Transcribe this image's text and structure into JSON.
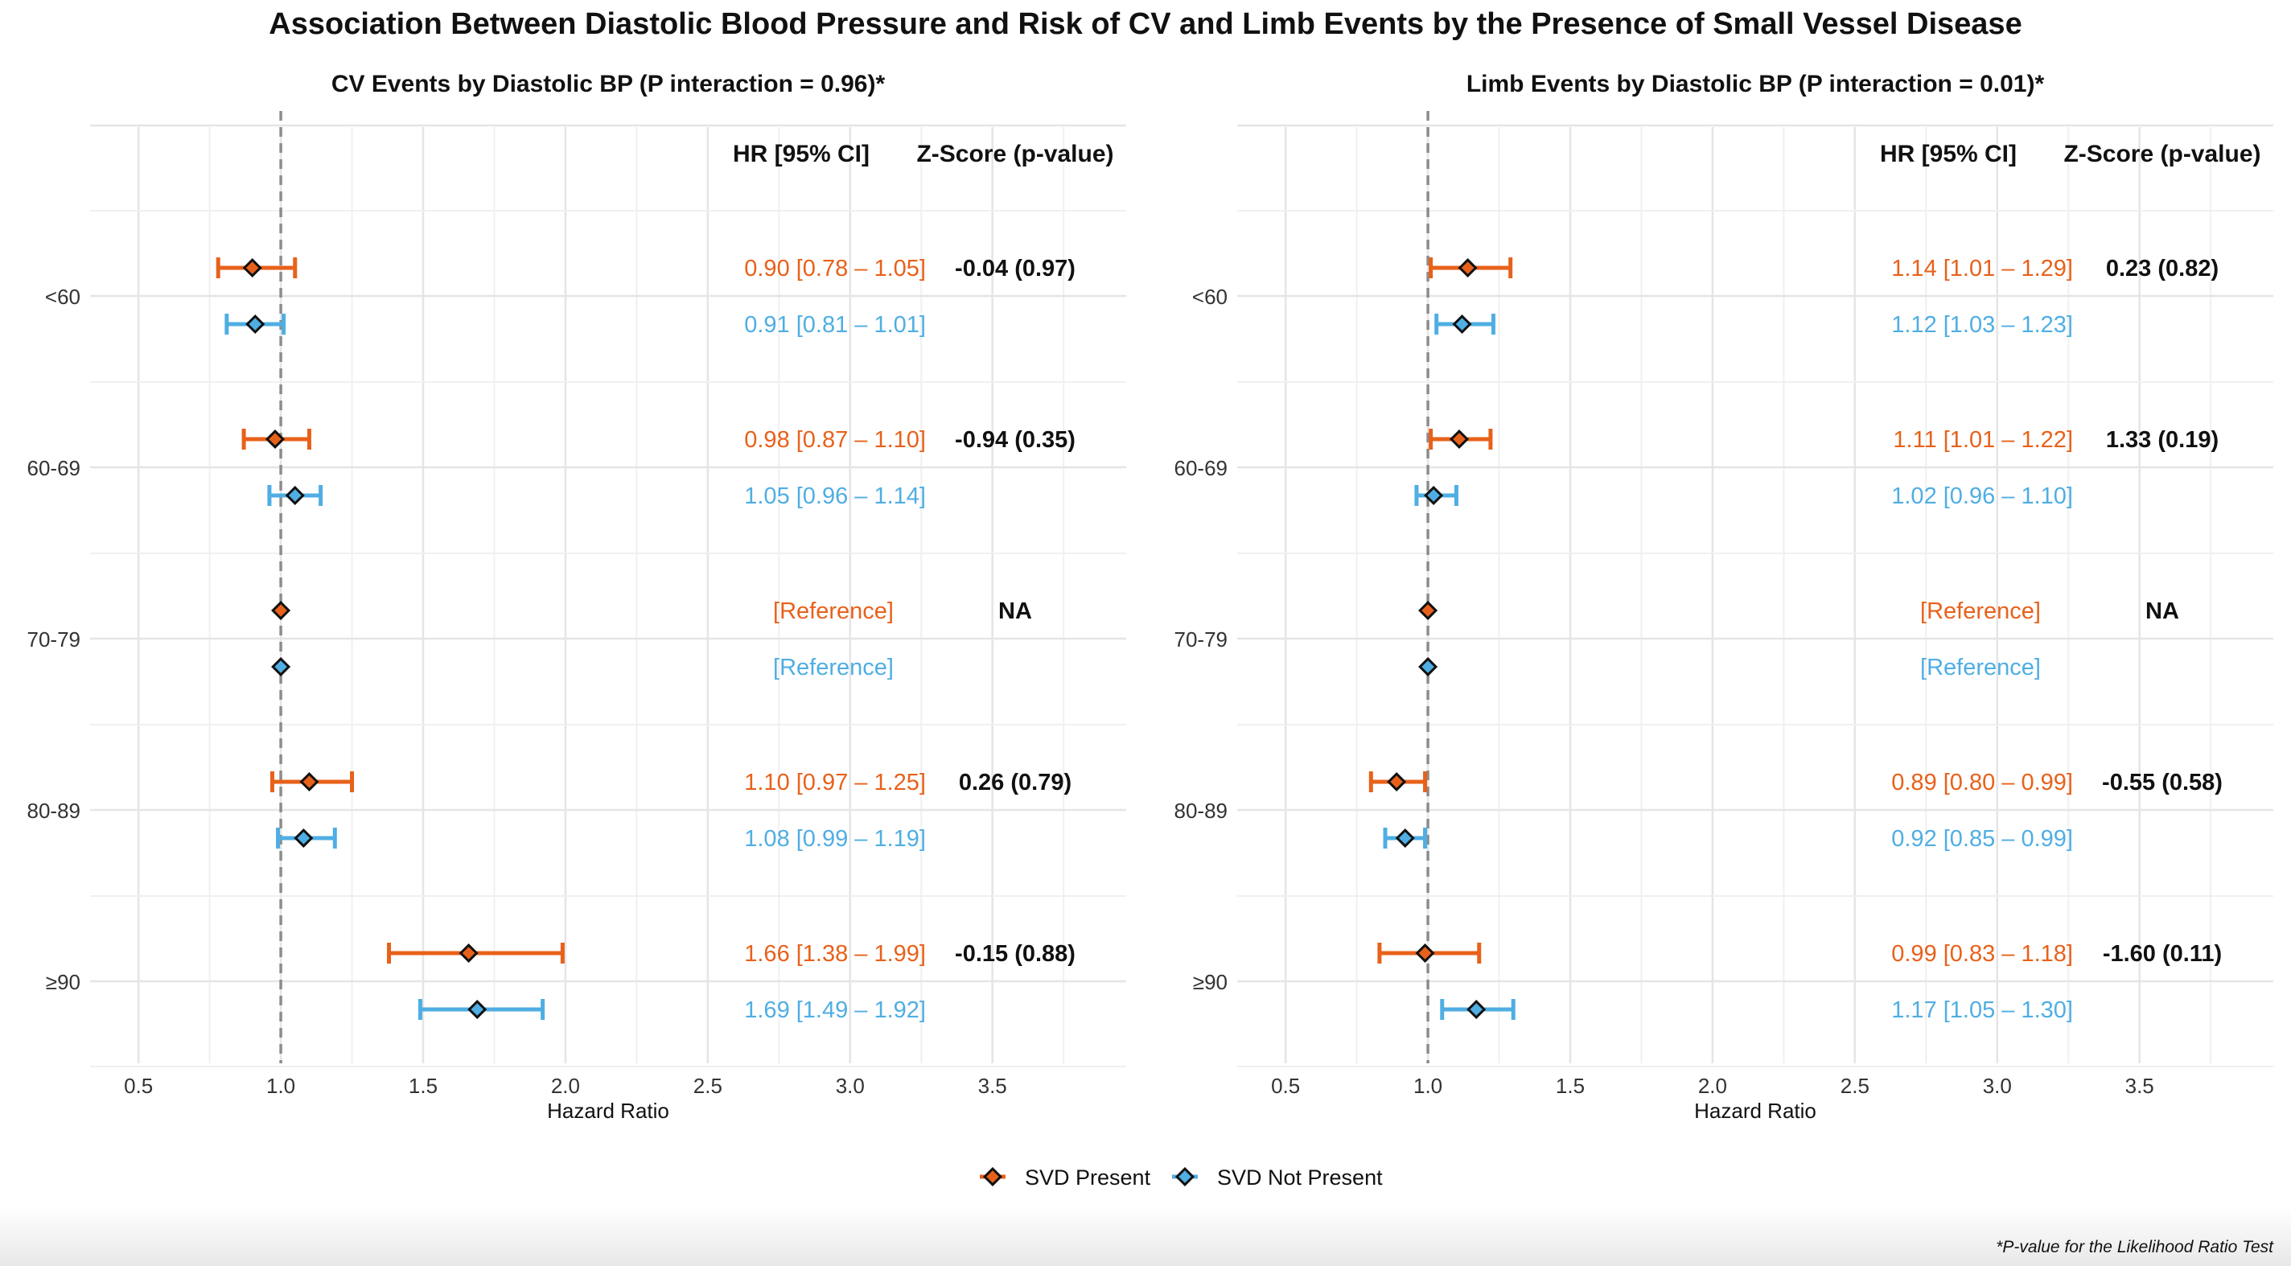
{
  "title": "Association Between Diastolic Blood Pressure and Risk of CV and Limb Events by the Presence of Small Vessel Disease",
  "footnote": "*P-value for the Likelihood Ratio Test",
  "colors": {
    "present": "#E8611A",
    "not_present": "#4FAEE3",
    "marker_fill_present": "#E8611A",
    "marker_fill_not_present": "#4FAEE3",
    "marker_edge": "#111111",
    "grid": "#E5E5E5",
    "reference_line": "#8C8C8C"
  },
  "legend": {
    "position": "bottom-center",
    "items": [
      {
        "label": "SVD Present",
        "series": "present"
      },
      {
        "label": "SVD Not Present",
        "series": "not_present"
      }
    ]
  },
  "chart_data": [
    {
      "type": "forest",
      "title": "CV Events by Diastolic BP (P interaction = 0.96)*",
      "xlabel": "Hazard Ratio",
      "xlim": [
        0.33,
        3.97
      ],
      "xticks": [
        0.5,
        1.0,
        1.5,
        2.0,
        2.5,
        3.0,
        3.5
      ],
      "xtick_labels": [
        "0.5",
        "1.0",
        "1.5",
        "2.0",
        "2.5",
        "3.0",
        "3.5"
      ],
      "reference_value": 1.0,
      "categories": [
        "<60",
        "60-69",
        "70-79",
        "80-89",
        "≥90"
      ],
      "col_hr_header": "HR [95% CI]",
      "col_z_header": "Z-Score (p-value)",
      "rows": [
        {
          "category": "<60",
          "present": {
            "hr": 0.9,
            "lo": 0.78,
            "hi": 1.05,
            "label": "0.90 [0.78 – 1.05]"
          },
          "not_present": {
            "hr": 0.91,
            "lo": 0.81,
            "hi": 1.01,
            "label": "0.91 [0.81 – 1.01]"
          },
          "z": "-0.04 (0.97)"
        },
        {
          "category": "60-69",
          "present": {
            "hr": 0.98,
            "lo": 0.87,
            "hi": 1.1,
            "label": "0.98 [0.87 – 1.10]"
          },
          "not_present": {
            "hr": 1.05,
            "lo": 0.96,
            "hi": 1.14,
            "label": "1.05 [0.96 – 1.14]"
          },
          "z": "-0.94 (0.35)"
        },
        {
          "category": "70-79",
          "present": {
            "hr": 1.0,
            "lo": 1.0,
            "hi": 1.0,
            "label": "[Reference]"
          },
          "not_present": {
            "hr": 1.0,
            "lo": 1.0,
            "hi": 1.0,
            "label": "[Reference]"
          },
          "z": "NA"
        },
        {
          "category": "80-89",
          "present": {
            "hr": 1.1,
            "lo": 0.97,
            "hi": 1.25,
            "label": "1.10 [0.97 – 1.25]"
          },
          "not_present": {
            "hr": 1.08,
            "lo": 0.99,
            "hi": 1.19,
            "label": "1.08 [0.99 – 1.19]"
          },
          "z": "0.26 (0.79)"
        },
        {
          "category": "≥90",
          "present": {
            "hr": 1.66,
            "lo": 1.38,
            "hi": 1.99,
            "label": "1.66 [1.38 – 1.99]"
          },
          "not_present": {
            "hr": 1.69,
            "lo": 1.49,
            "hi": 1.92,
            "label": "1.69 [1.49 – 1.92]"
          },
          "z": "-0.15 (0.88)"
        }
      ]
    },
    {
      "type": "forest",
      "title": "Limb Events by Diastolic BP (P interaction = 0.01)*",
      "xlabel": "Hazard Ratio",
      "xlim": [
        0.33,
        3.97
      ],
      "xticks": [
        0.5,
        1.0,
        1.5,
        2.0,
        2.5,
        3.0,
        3.5
      ],
      "xtick_labels": [
        "0.5",
        "1.0",
        "1.5",
        "2.0",
        "2.5",
        "3.0",
        "3.5"
      ],
      "reference_value": 1.0,
      "categories": [
        "<60",
        "60-69",
        "70-79",
        "80-89",
        "≥90"
      ],
      "col_hr_header": "HR [95% CI]",
      "col_z_header": "Z-Score (p-value)",
      "rows": [
        {
          "category": "<60",
          "present": {
            "hr": 1.14,
            "lo": 1.01,
            "hi": 1.29,
            "label": "1.14 [1.01 – 1.29]"
          },
          "not_present": {
            "hr": 1.12,
            "lo": 1.03,
            "hi": 1.23,
            "label": "1.12 [1.03 – 1.23]"
          },
          "z": "0.23 (0.82)"
        },
        {
          "category": "60-69",
          "present": {
            "hr": 1.11,
            "lo": 1.01,
            "hi": 1.22,
            "label": "1.11 [1.01 – 1.22]"
          },
          "not_present": {
            "hr": 1.02,
            "lo": 0.96,
            "hi": 1.1,
            "label": "1.02 [0.96 – 1.10]"
          },
          "z": "1.33 (0.19)"
        },
        {
          "category": "70-79",
          "present": {
            "hr": 1.0,
            "lo": 1.0,
            "hi": 1.0,
            "label": "[Reference]"
          },
          "not_present": {
            "hr": 1.0,
            "lo": 1.0,
            "hi": 1.0,
            "label": "[Reference]"
          },
          "z": "NA"
        },
        {
          "category": "80-89",
          "present": {
            "hr": 0.89,
            "lo": 0.8,
            "hi": 0.99,
            "label": "0.89 [0.80 – 0.99]"
          },
          "not_present": {
            "hr": 0.92,
            "lo": 0.85,
            "hi": 0.99,
            "label": "0.92 [0.85 – 0.99]"
          },
          "z": "-0.55 (0.58)"
        },
        {
          "category": "≥90",
          "present": {
            "hr": 0.99,
            "lo": 0.83,
            "hi": 1.18,
            "label": "0.99 [0.83 – 1.18]"
          },
          "not_present": {
            "hr": 1.17,
            "lo": 1.05,
            "hi": 1.3,
            "label": "1.17 [1.05 – 1.30]"
          },
          "z": "-1.60 (0.11)"
        }
      ]
    }
  ]
}
